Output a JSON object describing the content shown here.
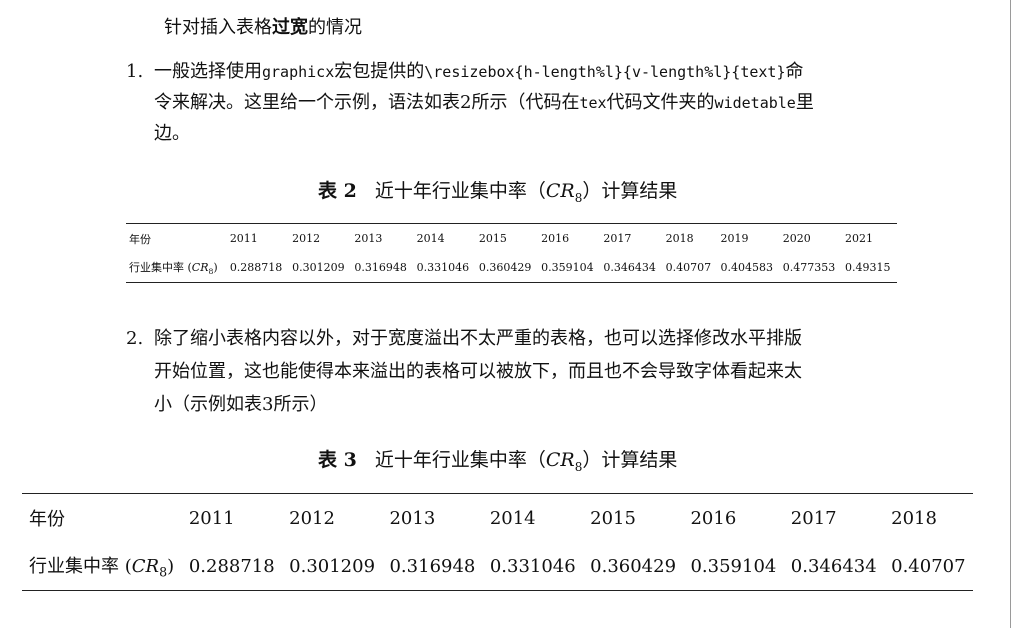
{
  "intro": {
    "before": "针对插入表格",
    "bold": "过宽",
    "after": "的情况"
  },
  "item1": {
    "number": "1.",
    "line1_a": "一般选择使用",
    "line1_code1": "graphicx",
    "line1_b": "宏包提供的",
    "line1_code2": "\\resizebox{h-length%l}{v-length%l}{text}",
    "line1_c": "命",
    "line2_a": "令来解决。这里给一个示例，语法如表2所示（代码在",
    "line2_code1": "tex",
    "line2_b": "代码文件夹的",
    "line2_code2": "widetable",
    "line2_c": "里",
    "line3": "边。"
  },
  "table2": {
    "caption_label": "表 2",
    "caption_text": "近十年行业集中率（",
    "caption_math": "CR",
    "caption_sub": "8",
    "caption_end": "）计算结果",
    "header_label": "年份",
    "years": [
      "2011",
      "2012",
      "2013",
      "2014",
      "2015",
      "2016",
      "2017",
      "2018",
      "2019",
      "2020",
      "2021"
    ],
    "row_label": "行业集中率 (",
    "row_math": "CR",
    "row_sub": "8",
    "row_close": ")",
    "values": [
      "0.288718",
      "0.301209",
      "0.316948",
      "0.331046",
      "0.360429",
      "0.359104",
      "0.346434",
      "0.40707",
      "0.404583",
      "0.477353",
      "0.49315"
    ]
  },
  "item2": {
    "number": "2.",
    "line1": "除了缩小表格内容以外，对于宽度溢出不太严重的表格，也可以选择修改水平排版",
    "line2": "开始位置，这也能使得本来溢出的表格可以被放下，而且也不会导致字体看起来太",
    "line3": "小（示例如表3所示）"
  },
  "table3": {
    "caption_label": "表 3",
    "caption_text": "近十年行业集中率（",
    "caption_math": "CR",
    "caption_sub": "8",
    "caption_end": "）计算结果",
    "header_label": "年份",
    "years": [
      "2011",
      "2012",
      "2013",
      "2014",
      "2015",
      "2016",
      "2017",
      "2018"
    ],
    "row_label": "行业集中率 (",
    "row_math": "CR",
    "row_sub": "8",
    "row_close": ")",
    "values": [
      "0.288718",
      "0.301209",
      "0.316948",
      "0.331046",
      "0.360429",
      "0.359104",
      "0.346434",
      "0.40707"
    ]
  }
}
